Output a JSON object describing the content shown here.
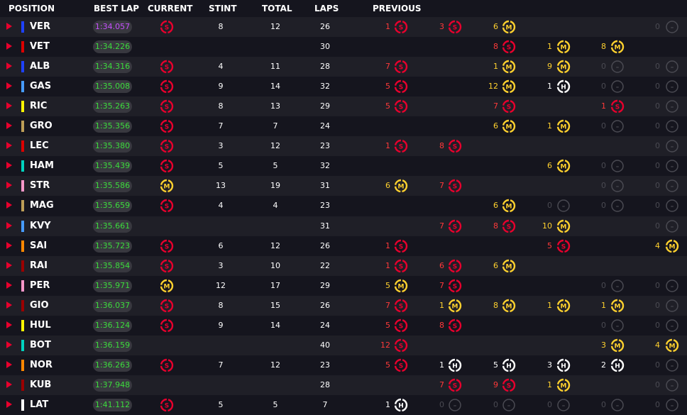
{
  "headers": {
    "position": "POSITION",
    "best_lap": "BEST LAP",
    "current": "CURRENT",
    "stint": "STINT",
    "total": "TOTAL",
    "laps": "LAPS",
    "previous": "PREVIOUS"
  },
  "colors": {
    "soft": "#e8002d",
    "medium": "#ffd12e",
    "hard": "#ffffff",
    "empty": "#4a4a52",
    "best_purple": "#c850ff",
    "best_green": "#3cdc3c",
    "prev_red": "#ff3a3a",
    "prev_yellow": "#ffd12e",
    "prev_white": "#ffffff"
  },
  "compound_letters": {
    "S": "S",
    "M": "M",
    "H": "H",
    "E": "–"
  },
  "rows": [
    {
      "driver": "VER",
      "team_color": "#1e41ff",
      "best": "1:34.057",
      "best_type": "purple",
      "current": "S",
      "stint": "8",
      "total": "12",
      "laps": "26",
      "prev": [
        {
          "n": "1",
          "c": "S"
        },
        {
          "n": "3",
          "c": "S"
        },
        {
          "n": "6",
          "c": "M"
        },
        null,
        null,
        {
          "n": "0",
          "c": "E"
        }
      ]
    },
    {
      "driver": "VET",
      "team_color": "#dc0000",
      "best": "1:34.226",
      "best_type": "green",
      "current": null,
      "stint": "",
      "total": "",
      "laps": "30",
      "prev": [
        null,
        null,
        {
          "n": "8",
          "c": "S"
        },
        {
          "n": "1",
          "c": "M"
        },
        {
          "n": "8",
          "c": "M"
        },
        null
      ]
    },
    {
      "driver": "ALB",
      "team_color": "#1e41ff",
      "best": "1:34.316",
      "best_type": "green",
      "current": "S",
      "stint": "4",
      "total": "11",
      "laps": "28",
      "prev": [
        {
          "n": "7",
          "c": "S"
        },
        null,
        {
          "n": "1",
          "c": "M"
        },
        {
          "n": "9",
          "c": "M"
        },
        {
          "n": "0",
          "c": "E"
        },
        {
          "n": "0",
          "c": "E"
        }
      ]
    },
    {
      "driver": "GAS",
      "team_color": "#469bff",
      "best": "1:35.008",
      "best_type": "green",
      "current": "S",
      "stint": "9",
      "total": "14",
      "laps": "32",
      "prev": [
        {
          "n": "5",
          "c": "S"
        },
        null,
        {
          "n": "12",
          "c": "M"
        },
        {
          "n": "1",
          "c": "H"
        },
        {
          "n": "0",
          "c": "E"
        },
        {
          "n": "0",
          "c": "E"
        }
      ]
    },
    {
      "driver": "RIC",
      "team_color": "#fff500",
      "best": "1:35.263",
      "best_type": "green",
      "current": "S",
      "stint": "8",
      "total": "13",
      "laps": "29",
      "prev": [
        {
          "n": "5",
          "c": "S"
        },
        null,
        {
          "n": "7",
          "c": "S"
        },
        null,
        {
          "n": "1",
          "c": "S"
        },
        {
          "n": "0",
          "c": "E"
        }
      ]
    },
    {
      "driver": "GRO",
      "team_color": "#bd9e57",
      "best": "1:35.356",
      "best_type": "green",
      "current": "S",
      "stint": "7",
      "total": "7",
      "laps": "24",
      "prev": [
        null,
        null,
        {
          "n": "6",
          "c": "M"
        },
        {
          "n": "1",
          "c": "M"
        },
        {
          "n": "0",
          "c": "E"
        },
        {
          "n": "0",
          "c": "E"
        }
      ]
    },
    {
      "driver": "LEC",
      "team_color": "#dc0000",
      "best": "1:35.380",
      "best_type": "green",
      "current": "S",
      "stint": "3",
      "total": "12",
      "laps": "23",
      "prev": [
        {
          "n": "1",
          "c": "S"
        },
        {
          "n": "8",
          "c": "S"
        },
        null,
        null,
        null,
        {
          "n": "0",
          "c": "E"
        }
      ]
    },
    {
      "driver": "HAM",
      "team_color": "#00d2be",
      "best": "1:35.439",
      "best_type": "green",
      "current": "S",
      "stint": "5",
      "total": "5",
      "laps": "32",
      "prev": [
        null,
        null,
        null,
        {
          "n": "6",
          "c": "M"
        },
        {
          "n": "0",
          "c": "E"
        },
        {
          "n": "0",
          "c": "E"
        }
      ]
    },
    {
      "driver": "STR",
      "team_color": "#f596c8",
      "best": "1:35.586",
      "best_type": "green",
      "current": "M",
      "stint": "13",
      "total": "19",
      "laps": "31",
      "prev": [
        {
          "n": "6",
          "c": "M"
        },
        {
          "n": "7",
          "c": "S"
        },
        null,
        null,
        {
          "n": "0",
          "c": "E"
        },
        {
          "n": "0",
          "c": "E"
        }
      ]
    },
    {
      "driver": "MAG",
      "team_color": "#bd9e57",
      "best": "1:35.659",
      "best_type": "green",
      "current": "S",
      "stint": "4",
      "total": "4",
      "laps": "23",
      "prev": [
        null,
        null,
        {
          "n": "6",
          "c": "M"
        },
        {
          "n": "0",
          "c": "E"
        },
        {
          "n": "0",
          "c": "E"
        },
        {
          "n": "0",
          "c": "E"
        }
      ]
    },
    {
      "driver": "KVY",
      "team_color": "#469bff",
      "best": "1:35.661",
      "best_type": "green",
      "current": null,
      "stint": "",
      "total": "",
      "laps": "31",
      "prev": [
        null,
        {
          "n": "7",
          "c": "S"
        },
        {
          "n": "8",
          "c": "S"
        },
        {
          "n": "10",
          "c": "M"
        },
        null,
        {
          "n": "0",
          "c": "E"
        }
      ]
    },
    {
      "driver": "SAI",
      "team_color": "#ff8700",
      "best": "1:35.723",
      "best_type": "green",
      "current": "S",
      "stint": "6",
      "total": "12",
      "laps": "26",
      "prev": [
        {
          "n": "1",
          "c": "S"
        },
        null,
        null,
        {
          "n": "5",
          "c": "S"
        },
        null,
        {
          "n": "4",
          "c": "M"
        }
      ]
    },
    {
      "driver": "RAI",
      "team_color": "#9b0000",
      "best": "1:35.854",
      "best_type": "green",
      "current": "S",
      "stint": "3",
      "total": "10",
      "laps": "22",
      "prev": [
        {
          "n": "1",
          "c": "S"
        },
        {
          "n": "6",
          "c": "S"
        },
        {
          "n": "6",
          "c": "M"
        },
        null,
        null,
        null
      ]
    },
    {
      "driver": "PER",
      "team_color": "#f596c8",
      "best": "1:35.971",
      "best_type": "green",
      "current": "M",
      "stint": "12",
      "total": "17",
      "laps": "29",
      "prev": [
        {
          "n": "5",
          "c": "M"
        },
        {
          "n": "7",
          "c": "S"
        },
        null,
        null,
        {
          "n": "0",
          "c": "E"
        },
        {
          "n": "0",
          "c": "E"
        }
      ]
    },
    {
      "driver": "GIO",
      "team_color": "#9b0000",
      "best": "1:36.037",
      "best_type": "green",
      "current": "S",
      "stint": "8",
      "total": "15",
      "laps": "26",
      "prev": [
        {
          "n": "7",
          "c": "S"
        },
        {
          "n": "1",
          "c": "M"
        },
        {
          "n": "8",
          "c": "M"
        },
        {
          "n": "1",
          "c": "M"
        },
        {
          "n": "1",
          "c": "M"
        },
        {
          "n": "0",
          "c": "E"
        }
      ]
    },
    {
      "driver": "HUL",
      "team_color": "#fff500",
      "best": "1:36.124",
      "best_type": "green",
      "current": "S",
      "stint": "9",
      "total": "14",
      "laps": "24",
      "prev": [
        {
          "n": "5",
          "c": "S"
        },
        {
          "n": "8",
          "c": "S"
        },
        null,
        null,
        {
          "n": "0",
          "c": "E"
        },
        {
          "n": "0",
          "c": "E"
        }
      ]
    },
    {
      "driver": "BOT",
      "team_color": "#00d2be",
      "best": "1:36.159",
      "best_type": "green",
      "current": null,
      "stint": "",
      "total": "",
      "laps": "40",
      "prev": [
        {
          "n": "12",
          "c": "S"
        },
        null,
        null,
        null,
        {
          "n": "3",
          "c": "M"
        },
        {
          "n": "4",
          "c": "M"
        }
      ]
    },
    {
      "driver": "NOR",
      "team_color": "#ff8700",
      "best": "1:36.263",
      "best_type": "green",
      "current": "S",
      "stint": "7",
      "total": "12",
      "laps": "23",
      "prev": [
        {
          "n": "5",
          "c": "S"
        },
        {
          "n": "1",
          "c": "H"
        },
        {
          "n": "5",
          "c": "H"
        },
        {
          "n": "3",
          "c": "H"
        },
        {
          "n": "2",
          "c": "H"
        },
        {
          "n": "0",
          "c": "E"
        }
      ]
    },
    {
      "driver": "KUB",
      "team_color": "#9b0000",
      "best": "1:37.948",
      "best_type": "green",
      "current": null,
      "stint": "",
      "total": "",
      "laps": "28",
      "prev": [
        null,
        {
          "n": "7",
          "c": "S"
        },
        {
          "n": "9",
          "c": "S"
        },
        {
          "n": "1",
          "c": "M"
        },
        null,
        {
          "n": "0",
          "c": "E"
        }
      ]
    },
    {
      "driver": "LAT",
      "team_color": "#ffffff",
      "best": "1:41.112",
      "best_type": "green",
      "current": "S",
      "stint": "5",
      "total": "5",
      "laps": "7",
      "prev": [
        {
          "n": "1",
          "c": "H"
        },
        {
          "n": "0",
          "c": "E"
        },
        {
          "n": "0",
          "c": "E"
        },
        {
          "n": "0",
          "c": "E"
        },
        {
          "n": "0",
          "c": "E"
        },
        {
          "n": "0",
          "c": "E"
        }
      ]
    }
  ]
}
